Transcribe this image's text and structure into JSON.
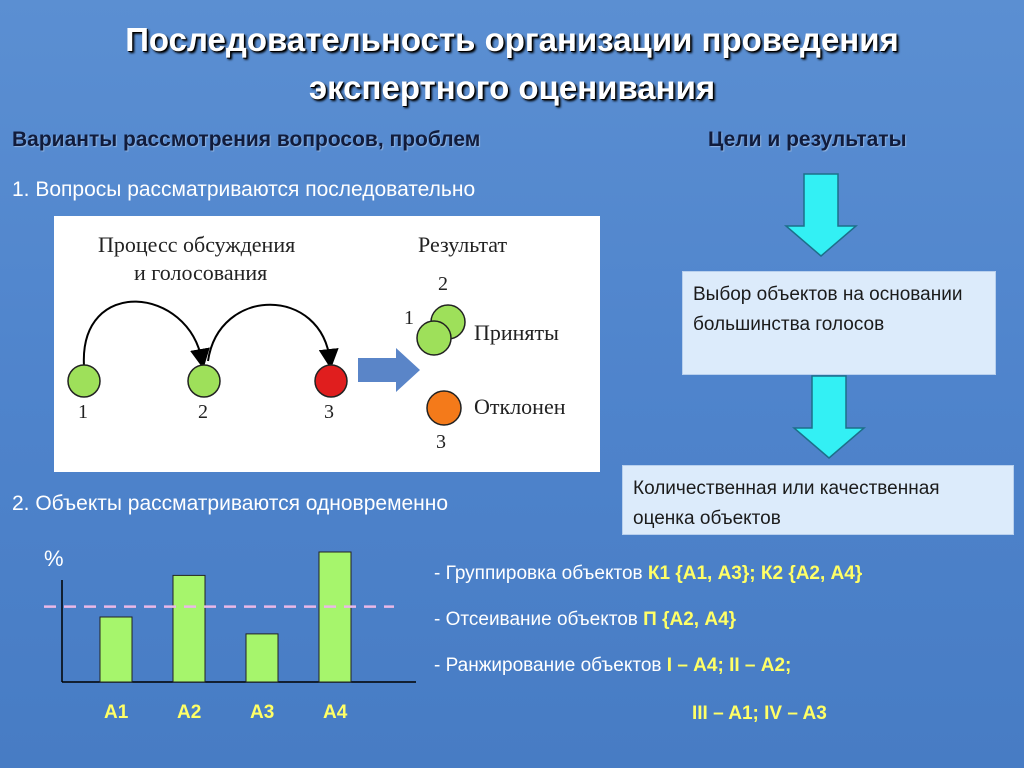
{
  "title": {
    "line1": "Последовательность организации проведения",
    "line2": "экспертного оценивания"
  },
  "left_header": "Варианты рассмотрения вопросов, проблем",
  "right_header": "Цели и результаты",
  "item1": "1. Вопросы рассматриваются последовательно",
  "item2": "2. Объекты рассматриваются одновременно",
  "sequence_diagram": {
    "process_label_line1": "Процесс обсуждения",
    "process_label_line2": "и голосования",
    "result_label": "Результат",
    "node_labels": [
      "1",
      "2",
      "3"
    ],
    "accepted_label": "Приняты",
    "rejected_label": "Отклонен",
    "result_labels": {
      "top": "2",
      "left": "1",
      "bottom": "3"
    },
    "colors": {
      "green": "#9ee05a",
      "red": "#e01e1e",
      "orange": "#f47a1a",
      "arrow": "#5a85c8"
    }
  },
  "flow": {
    "box1": "Выбор объектов на основании большинства голосов",
    "box2": "Количественная или качественная оценка объектов",
    "arrow_color": "#33f0f4"
  },
  "chart_data": {
    "type": "bar",
    "categories": [
      "A1",
      "A2",
      "A3",
      "A4"
    ],
    "values": [
      50,
      82,
      37,
      100
    ],
    "threshold": 58,
    "ylabel": "%",
    "ylim": [
      0,
      100
    ],
    "bar_color": "#a6f56c",
    "threshold_color": "#e9b8e6"
  },
  "operations": [
    {
      "prefix": "- ",
      "text": "Группировка объектов ",
      "value": "К1 {А1, А3}; К2 {А2, А4}"
    },
    {
      "prefix": "- ",
      "text": "Отсеивание объектов  ",
      "value": "П {А2, А4}"
    },
    {
      "prefix": "- ",
      "text": "Ранжирование объектов  ",
      "value": "I – А4; II – А2;"
    }
  ],
  "operations_continuation": "III – A1; IV – A3"
}
